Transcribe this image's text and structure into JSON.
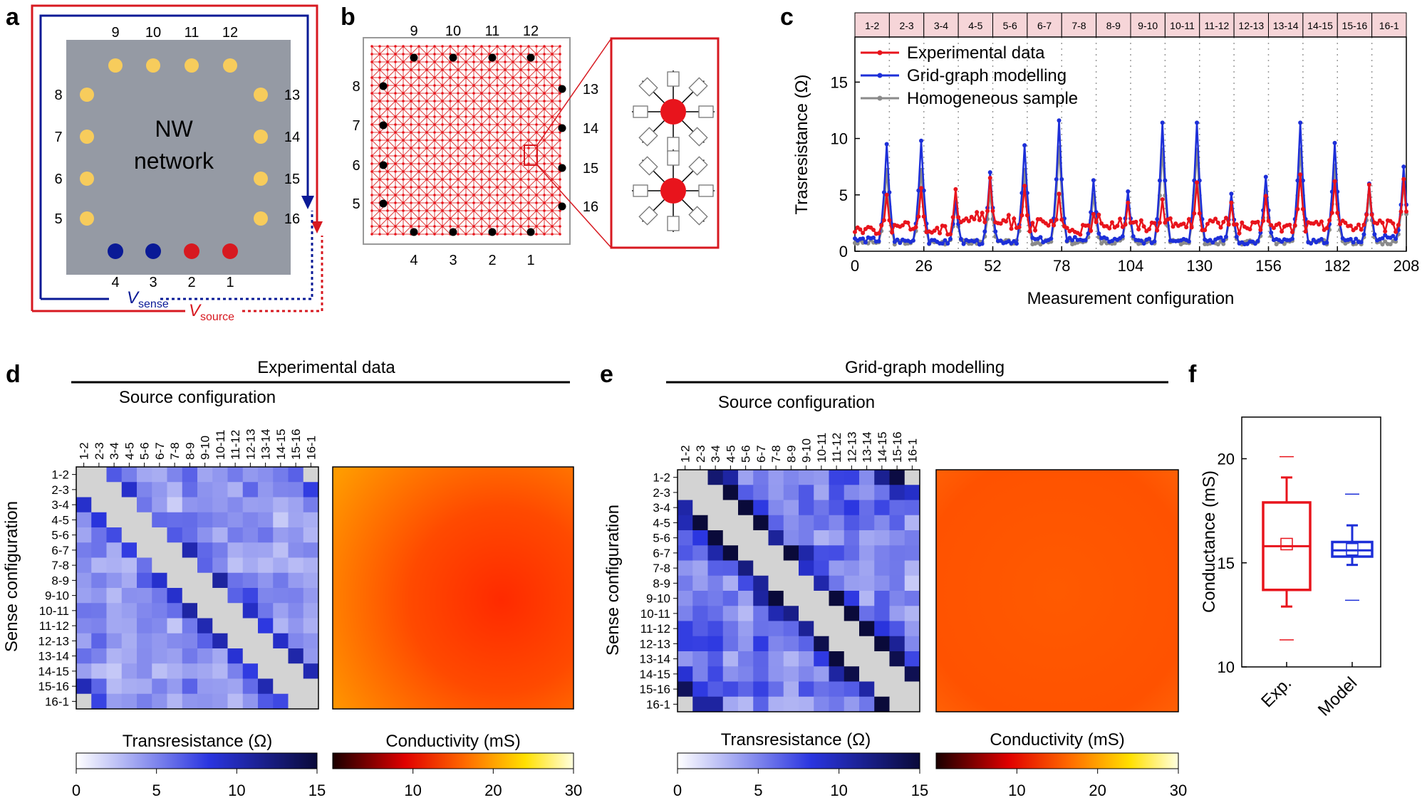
{
  "panels": {
    "a": {
      "letter": "a",
      "network_label": [
        "NW",
        "network"
      ],
      "top_electrodes": [
        "9",
        "10",
        "11",
        "12"
      ],
      "left_electrodes": [
        "8",
        "7",
        "6",
        "5"
      ],
      "right_electrodes": [
        "13",
        "14",
        "15",
        "16"
      ],
      "bottom_electrodes": [
        "4",
        "3",
        "2",
        "1"
      ],
      "v_sense": {
        "symbol": "V",
        "sub": "sense"
      },
      "v_source": {
        "symbol": "V",
        "sub": "source"
      },
      "colors": {
        "sense": "#0a1a96",
        "source": "#d71920",
        "electrode": "#f7cc5c",
        "sample": "#959aa4"
      }
    },
    "b": {
      "letter": "b",
      "top_electrodes": [
        "9",
        "10",
        "11",
        "12"
      ],
      "left_electrodes": [
        "8",
        "7",
        "6",
        "5"
      ],
      "right_electrodes": [
        "13",
        "14",
        "15",
        "16"
      ],
      "bottom_electrodes": [
        "4",
        "3",
        "2",
        "1"
      ]
    },
    "c": {
      "letter": "c",
      "config_labels": [
        "1-2",
        "2-3",
        "3-4",
        "4-5",
        "5-6",
        "6-7",
        "7-8",
        "8-9",
        "9-10",
        "10-11",
        "11-12",
        "12-13",
        "13-14",
        "14-15",
        "15-16",
        "16-1"
      ]
    },
    "d": {
      "letter": "d",
      "title": "Experimental data",
      "source_title": "Source configuration",
      "sense_title": "Sense configuration",
      "transres_label": "Transresistance (Ω)",
      "cond_label": "Conductivity (mS)",
      "transres_ticks": [
        "0",
        "5",
        "10",
        "15"
      ],
      "cond_ticks": [
        "10",
        "20",
        "30"
      ]
    },
    "e": {
      "letter": "e",
      "title": "Grid-graph modelling",
      "source_title": "Source configuration",
      "sense_title": "Sense configuration",
      "transres_label": "Transresistance (Ω)",
      "cond_label": "Conductivity (mS)",
      "transres_ticks": [
        "0",
        "5",
        "10",
        "15"
      ],
      "cond_ticks": [
        "10",
        "20",
        "30"
      ]
    },
    "f": {
      "letter": "f"
    }
  },
  "chart_data": [
    {
      "id": "panel-c",
      "type": "line",
      "xlabel": "Measurement configuration",
      "ylabel": "Trasresistance (Ω)",
      "xlim": [
        0,
        208
      ],
      "ylim": [
        0,
        19
      ],
      "x_ticks": [
        0,
        26,
        52,
        78,
        104,
        130,
        156,
        182,
        208
      ],
      "y_ticks": [
        0,
        5,
        10,
        15
      ],
      "legend": "top-left",
      "peak_positions": [
        13,
        26,
        39,
        52,
        65,
        78,
        91,
        104,
        117,
        130,
        143,
        156,
        169,
        182,
        195,
        208
      ],
      "series": [
        {
          "name": "Experimental data",
          "color": "#e8141c",
          "baseline": [
            2.0,
            2.1,
            1.9,
            3.0,
            2.6,
            2.3,
            1.9,
            2.6,
            2.3,
            2.4,
            2.4,
            2.1,
            2.1,
            2.2,
            2.3,
            2.2
          ],
          "peaks": [
            5.0,
            5.6,
            5.5,
            6.5,
            5.8,
            5.1,
            3.3,
            4.3,
            4.6,
            6.1,
            4.3,
            4.9,
            6.8,
            6.2,
            5.9,
            6.4
          ]
        },
        {
          "name": "Grid-graph modelling",
          "color": "#1d2fd8",
          "baseline": [
            1.0,
            0.9,
            0.8,
            0.8,
            0.9,
            1.0,
            1.1,
            1.0,
            0.9,
            1.1,
            1.0,
            0.8,
            0.9,
            0.9,
            1.0,
            1.2
          ],
          "peaks": [
            9.5,
            9.8,
            4.4,
            7.0,
            9.4,
            11.6,
            6.3,
            5.3,
            11.4,
            11.4,
            5.1,
            6.6,
            11.4,
            9.6,
            6.0,
            7.5
          ]
        },
        {
          "name": "Homogeneous sample",
          "color": "#8a8a8a",
          "baseline": [
            0.8,
            0.8,
            0.8,
            0.8,
            0.8,
            0.8,
            0.8,
            0.8,
            0.8,
            0.8,
            0.8,
            0.8,
            0.8,
            0.8,
            0.8,
            0.8
          ],
          "peaks": [
            7.2,
            7.2,
            4.0,
            5.2,
            7.2,
            9.2,
            5.0,
            4.5,
            9.0,
            9.0,
            4.4,
            5.4,
            9.0,
            7.6,
            5.0,
            6.0
          ]
        }
      ]
    },
    {
      "id": "panel-d-heatmap",
      "type": "heatmap",
      "title": "Experimental data",
      "xlabel": "Source configuration",
      "ylabel": "Sense configuration",
      "labels": [
        "1-2",
        "2-3",
        "3-4",
        "4-5",
        "5-6",
        "6-7",
        "7-8",
        "8-9",
        "9-10",
        "10-11",
        "11-12",
        "12-13",
        "13-14",
        "14-15",
        "15-16",
        "16-1"
      ],
      "color_range": [
        0,
        15
      ],
      "colorbar_label": "Transresistance (Ω)",
      "seed": 7,
      "strength": 0.45
    },
    {
      "id": "panel-e-heatmap",
      "type": "heatmap",
      "title": "Grid-graph modelling",
      "xlabel": "Source configuration",
      "ylabel": "Sense configuration",
      "labels": [
        "1-2",
        "2-3",
        "3-4",
        "4-5",
        "5-6",
        "6-7",
        "7-8",
        "8-9",
        "9-10",
        "10-11",
        "11-12",
        "12-13",
        "13-14",
        "14-15",
        "15-16",
        "16-1"
      ],
      "color_range": [
        0,
        15
      ],
      "colorbar_label": "Transresistance (Ω)",
      "seed": 13,
      "strength": 0.85
    },
    {
      "id": "panel-f",
      "type": "box",
      "ylabel": "Conductance (mS)",
      "ylim": [
        10,
        22
      ],
      "y_ticks": [
        10,
        15,
        20
      ],
      "categories": [
        "Exp.",
        "Model"
      ],
      "boxes": [
        {
          "name": "Exp.",
          "color": "#e8141c",
          "min": 11.3,
          "whisker_low": 12.9,
          "q1": 13.7,
          "median": 15.8,
          "mean": 15.9,
          "q3": 17.9,
          "whisker_high": 19.1,
          "max": 20.1
        },
        {
          "name": "Model",
          "color": "#1d2fd8",
          "min": 13.2,
          "whisker_low": 14.9,
          "q1": 15.3,
          "median": 15.6,
          "mean": 15.65,
          "q3": 16.0,
          "whisker_high": 16.8,
          "max": 18.3
        }
      ]
    }
  ]
}
